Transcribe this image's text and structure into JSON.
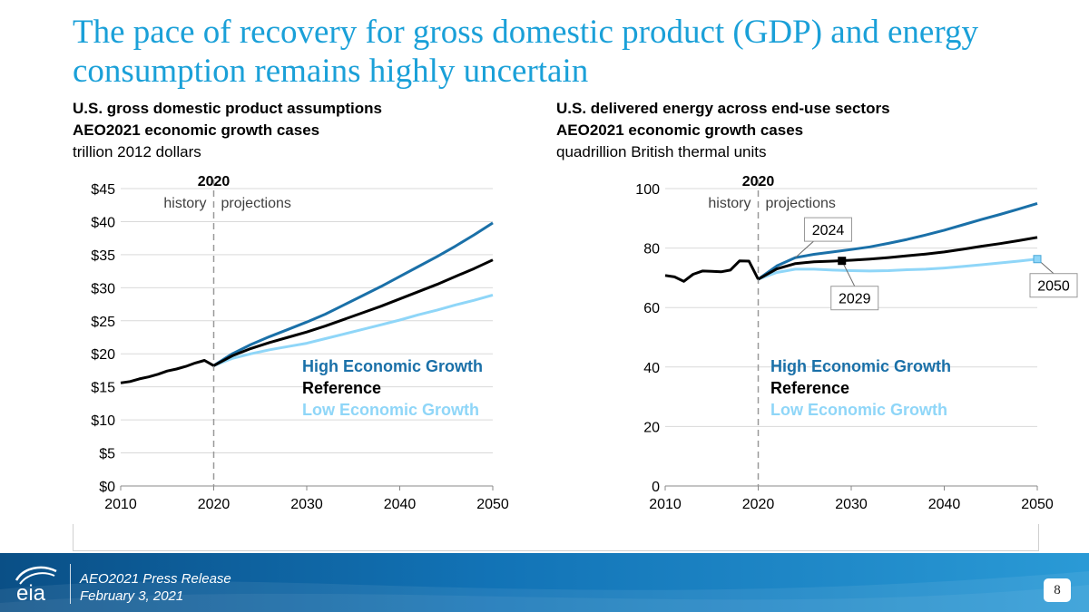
{
  "slide": {
    "title": "The pace of recovery for gross domestic product (GDP) and energy consumption remains highly uncertain"
  },
  "footer": {
    "release": "AEO2021 Press Release",
    "date": "February 3, 2021",
    "page_number": "8",
    "logo_text": "eia"
  },
  "colors": {
    "title": "#1aa0d8",
    "high": "#1a70a8",
    "reference": "#000000",
    "low": "#8fd6f8",
    "footer": "#1273b6"
  },
  "chart_data": [
    {
      "type": "line",
      "title_lines": [
        "U.S. gross domestic product assumptions",
        "AEO2021 economic growth cases"
      ],
      "units": "trillion 2012 dollars",
      "xlim": [
        2010,
        2050
      ],
      "ylim": [
        0,
        45
      ],
      "x_ticks": [
        2010,
        2020,
        2030,
        2040,
        2050
      ],
      "x_tick_labels": [
        "2010",
        "2020",
        "2030",
        "2040",
        "2050"
      ],
      "y_ticks": [
        0,
        5,
        10,
        15,
        20,
        25,
        30,
        35,
        40,
        45
      ],
      "y_tick_labels": [
        "$0",
        "$5",
        "$10",
        "$15",
        "$20",
        "$25",
        "$30",
        "$35",
        "$40",
        "$45"
      ],
      "grid": true,
      "legend_placement": "right-middle",
      "divider": {
        "x": 2020,
        "label": "2020",
        "left_label": "history",
        "right_label": "projections"
      },
      "history": {
        "x": [
          2010,
          2011,
          2012,
          2013,
          2014,
          2015,
          2016,
          2017,
          2018,
          2019,
          2020
        ],
        "values": [
          15.6,
          15.8,
          16.2,
          16.5,
          16.9,
          17.4,
          17.7,
          18.1,
          18.6,
          19.0,
          18.2
        ]
      },
      "series": [
        {
          "name": "High Economic Growth",
          "key": "high",
          "x": [
            2020,
            2022,
            2024,
            2026,
            2028,
            2030,
            2032,
            2034,
            2036,
            2038,
            2040,
            2042,
            2044,
            2046,
            2048,
            2050
          ],
          "values": [
            18.2,
            20.0,
            21.4,
            22.6,
            23.7,
            24.8,
            26.0,
            27.4,
            28.8,
            30.2,
            31.7,
            33.2,
            34.7,
            36.3,
            38.0,
            39.8
          ]
        },
        {
          "name": "Reference",
          "key": "reference",
          "x": [
            2020,
            2022,
            2024,
            2026,
            2028,
            2030,
            2032,
            2034,
            2036,
            2038,
            2040,
            2042,
            2044,
            2046,
            2048,
            2050
          ],
          "values": [
            18.2,
            19.7,
            20.8,
            21.7,
            22.5,
            23.3,
            24.2,
            25.2,
            26.2,
            27.2,
            28.3,
            29.4,
            30.5,
            31.7,
            32.9,
            34.2
          ]
        },
        {
          "name": "Low Economic Growth",
          "key": "low",
          "x": [
            2020,
            2022,
            2024,
            2026,
            2028,
            2030,
            2032,
            2034,
            2036,
            2038,
            2040,
            2042,
            2044,
            2046,
            2048,
            2050
          ],
          "values": [
            18.2,
            19.3,
            20.0,
            20.6,
            21.1,
            21.6,
            22.3,
            23.0,
            23.7,
            24.4,
            25.1,
            25.9,
            26.6,
            27.4,
            28.1,
            28.9
          ]
        }
      ]
    },
    {
      "type": "line",
      "title_lines": [
        "U.S. delivered energy across end-use sectors",
        "AEO2021 economic growth cases"
      ],
      "units": "quadrillion British thermal units",
      "xlim": [
        2010,
        2050
      ],
      "ylim": [
        0,
        100
      ],
      "x_ticks": [
        2010,
        2020,
        2030,
        2040,
        2050
      ],
      "x_tick_labels": [
        "2010",
        "2020",
        "2030",
        "2040",
        "2050"
      ],
      "y_ticks": [
        0,
        20,
        40,
        60,
        80,
        100
      ],
      "y_tick_labels": [
        "0",
        "20",
        "40",
        "60",
        "80",
        "100"
      ],
      "grid": true,
      "legend_placement": "right-middle",
      "divider": {
        "x": 2020,
        "label": "2020",
        "left_label": "history",
        "right_label": "projections"
      },
      "history": {
        "x": [
          2010,
          2011,
          2012,
          2013,
          2014,
          2015,
          2016,
          2017,
          2018,
          2019,
          2020
        ],
        "values": [
          70.8,
          70.3,
          68.8,
          71.2,
          72.3,
          72.2,
          72.0,
          72.6,
          75.7,
          75.6,
          69.5
        ]
      },
      "series": [
        {
          "name": "High Economic Growth",
          "key": "high",
          "x": [
            2020,
            2022,
            2024,
            2026,
            2028,
            2030,
            2032,
            2034,
            2036,
            2038,
            2040,
            2042,
            2044,
            2046,
            2048,
            2050
          ],
          "values": [
            69.5,
            74.0,
            76.8,
            77.9,
            78.7,
            79.5,
            80.4,
            81.6,
            82.9,
            84.4,
            86.0,
            87.8,
            89.6,
            91.3,
            93.1,
            95.0
          ]
        },
        {
          "name": "Reference",
          "key": "reference",
          "x": [
            2020,
            2022,
            2024,
            2026,
            2028,
            2030,
            2032,
            2034,
            2036,
            2038,
            2040,
            2042,
            2044,
            2046,
            2048,
            2050
          ],
          "values": [
            69.5,
            73.0,
            74.8,
            75.4,
            75.6,
            75.9,
            76.3,
            76.8,
            77.4,
            78.0,
            78.7,
            79.6,
            80.6,
            81.5,
            82.5,
            83.6
          ]
        },
        {
          "name": "Low Economic Growth",
          "key": "low",
          "x": [
            2020,
            2022,
            2024,
            2026,
            2028,
            2030,
            2032,
            2034,
            2036,
            2038,
            2040,
            2042,
            2044,
            2046,
            2048,
            2050
          ],
          "values": [
            69.5,
            71.8,
            72.9,
            72.9,
            72.6,
            72.4,
            72.3,
            72.4,
            72.7,
            72.9,
            73.3,
            73.8,
            74.4,
            75.0,
            75.6,
            76.3
          ]
        }
      ],
      "annotations": [
        {
          "label": "2024",
          "x": 2024,
          "y": 76.8,
          "series": "high",
          "marker": false
        },
        {
          "label": "2029",
          "x": 2029,
          "y": 75.7,
          "series": "reference",
          "marker": true
        },
        {
          "label": "2050",
          "x": 2050,
          "y": 76.3,
          "series": "low",
          "marker": true
        }
      ]
    }
  ]
}
